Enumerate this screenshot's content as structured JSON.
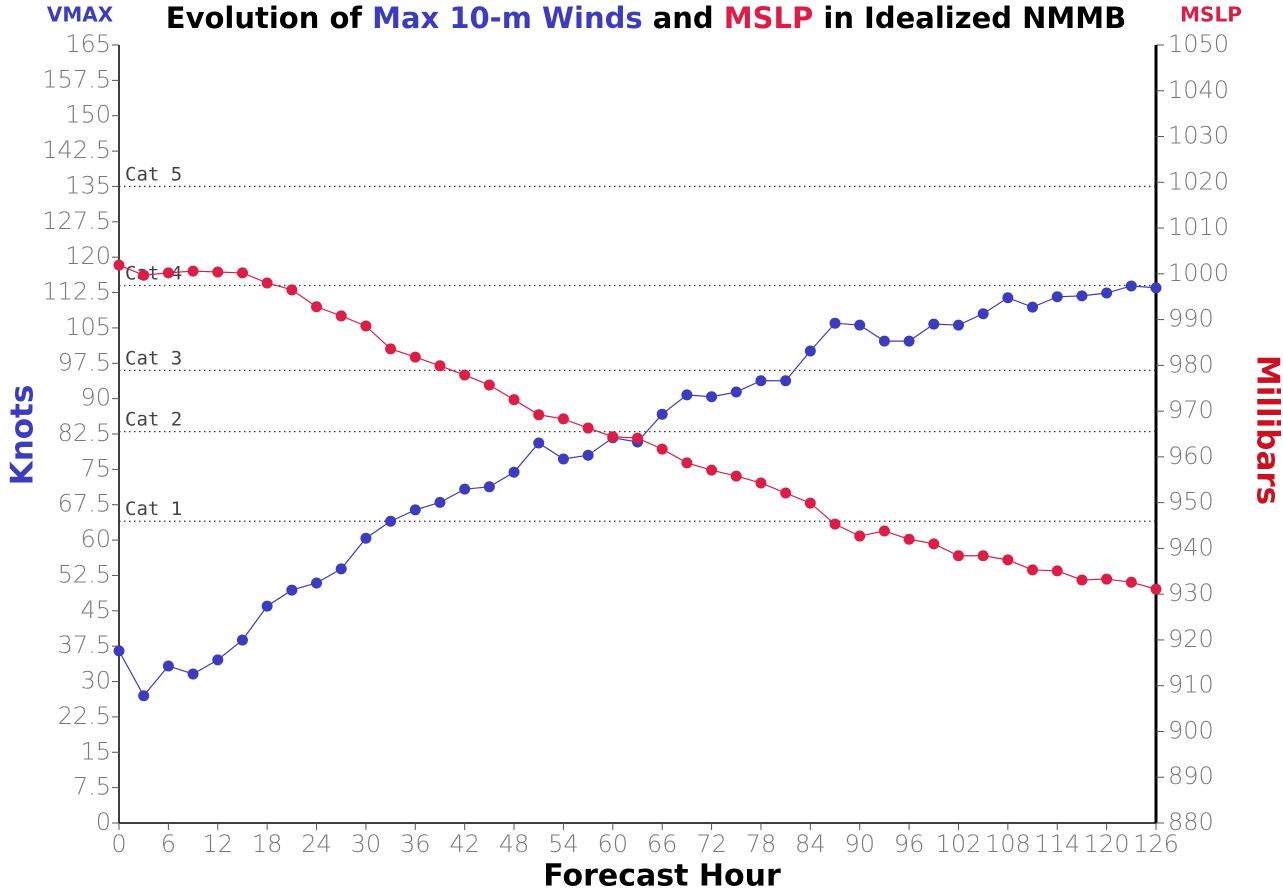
{
  "chart_data": {
    "type": "line",
    "title": [
      {
        "text": "Evolution of ",
        "color": "#000000"
      },
      {
        "text": "Max 10-m Winds",
        "color": "#3c3cc0"
      },
      {
        "text": " and ",
        "color": "#000000"
      },
      {
        "text": "MSLP",
        "color": "#dc1e46"
      },
      {
        "text": " in Idealized NMMB",
        "color": "#000000"
      }
    ],
    "y_label_top": "VMAX",
    "y2_label_top": "MSLP",
    "y_label": "Knots",
    "y2_label": "Millibars",
    "x_label": "Forecast Hour",
    "x": [
      0,
      3,
      6,
      9,
      12,
      15,
      18,
      21,
      24,
      27,
      30,
      33,
      36,
      39,
      42,
      45,
      48,
      51,
      54,
      57,
      60,
      63,
      66,
      69,
      72,
      75,
      78,
      81,
      84,
      87,
      90,
      93,
      96,
      99,
      102,
      105,
      108,
      111,
      114,
      117,
      120,
      123,
      126
    ],
    "xlim": [
      0,
      126
    ],
    "xticks": [
      0,
      6,
      12,
      18,
      24,
      30,
      36,
      42,
      48,
      54,
      60,
      66,
      72,
      78,
      84,
      90,
      96,
      102,
      108,
      114,
      120,
      126
    ],
    "ylim": [
      0,
      165
    ],
    "yticks": [
      0,
      7.5,
      15,
      22.5,
      30,
      37.5,
      45,
      52.5,
      60,
      67.5,
      75,
      82.5,
      90,
      97.5,
      105,
      112.5,
      120,
      127.5,
      135,
      142.5,
      150,
      157.5,
      165
    ],
    "y2lim": [
      880,
      1050
    ],
    "y2ticks": [
      880,
      890,
      900,
      910,
      920,
      930,
      940,
      950,
      960,
      970,
      980,
      990,
      1000,
      1010,
      1020,
      1030,
      1040,
      1050
    ],
    "annotations": [
      {
        "text": "Cat 1",
        "value": 64
      },
      {
        "text": "Cat 2",
        "value": 83
      },
      {
        "text": "Cat 3",
        "value": 96
      },
      {
        "text": "Cat 4",
        "value": 114
      },
      {
        "text": "Cat 5",
        "value": 135
      }
    ],
    "series": [
      {
        "name": "Max 10-m Winds",
        "color": "#3c3cc0",
        "values": [
          36.5,
          27,
          33.3,
          31.6,
          34.6,
          38.8,
          46,
          49.4,
          50.9,
          53.9,
          60.4,
          64,
          66.4,
          68,
          70.8,
          71.3,
          74.4,
          80.6,
          77.2,
          78,
          81.7,
          80.8,
          86.7,
          90.8,
          90.4,
          91.4,
          93.8,
          93.8,
          100.1,
          106,
          105.6,
          102.2,
          102.2,
          105.8,
          105.6,
          108,
          111.4,
          109.4,
          111.6,
          111.8,
          112.4,
          113.9,
          113.5
        ]
      },
      {
        "name": "MSLP",
        "color": "#dc1e46",
        "axis": "y2",
        "values": [
          1001.9,
          999.7,
          1000.2,
          1000.6,
          1000.4,
          1000.2,
          998,
          996.5,
          992.8,
          990.8,
          988.6,
          983.6,
          981.8,
          979.9,
          977.9,
          975.7,
          972.5,
          969.2,
          968.3,
          966.3,
          964.4,
          964.1,
          961.7,
          958.7,
          957.1,
          955.8,
          954.3,
          952.1,
          949.9,
          945.3,
          942.7,
          943.8,
          942,
          941,
          938.4,
          938.4,
          937.5,
          935.3,
          935.1,
          933.1,
          933.3,
          932.6,
          931.1
        ]
      }
    ]
  }
}
